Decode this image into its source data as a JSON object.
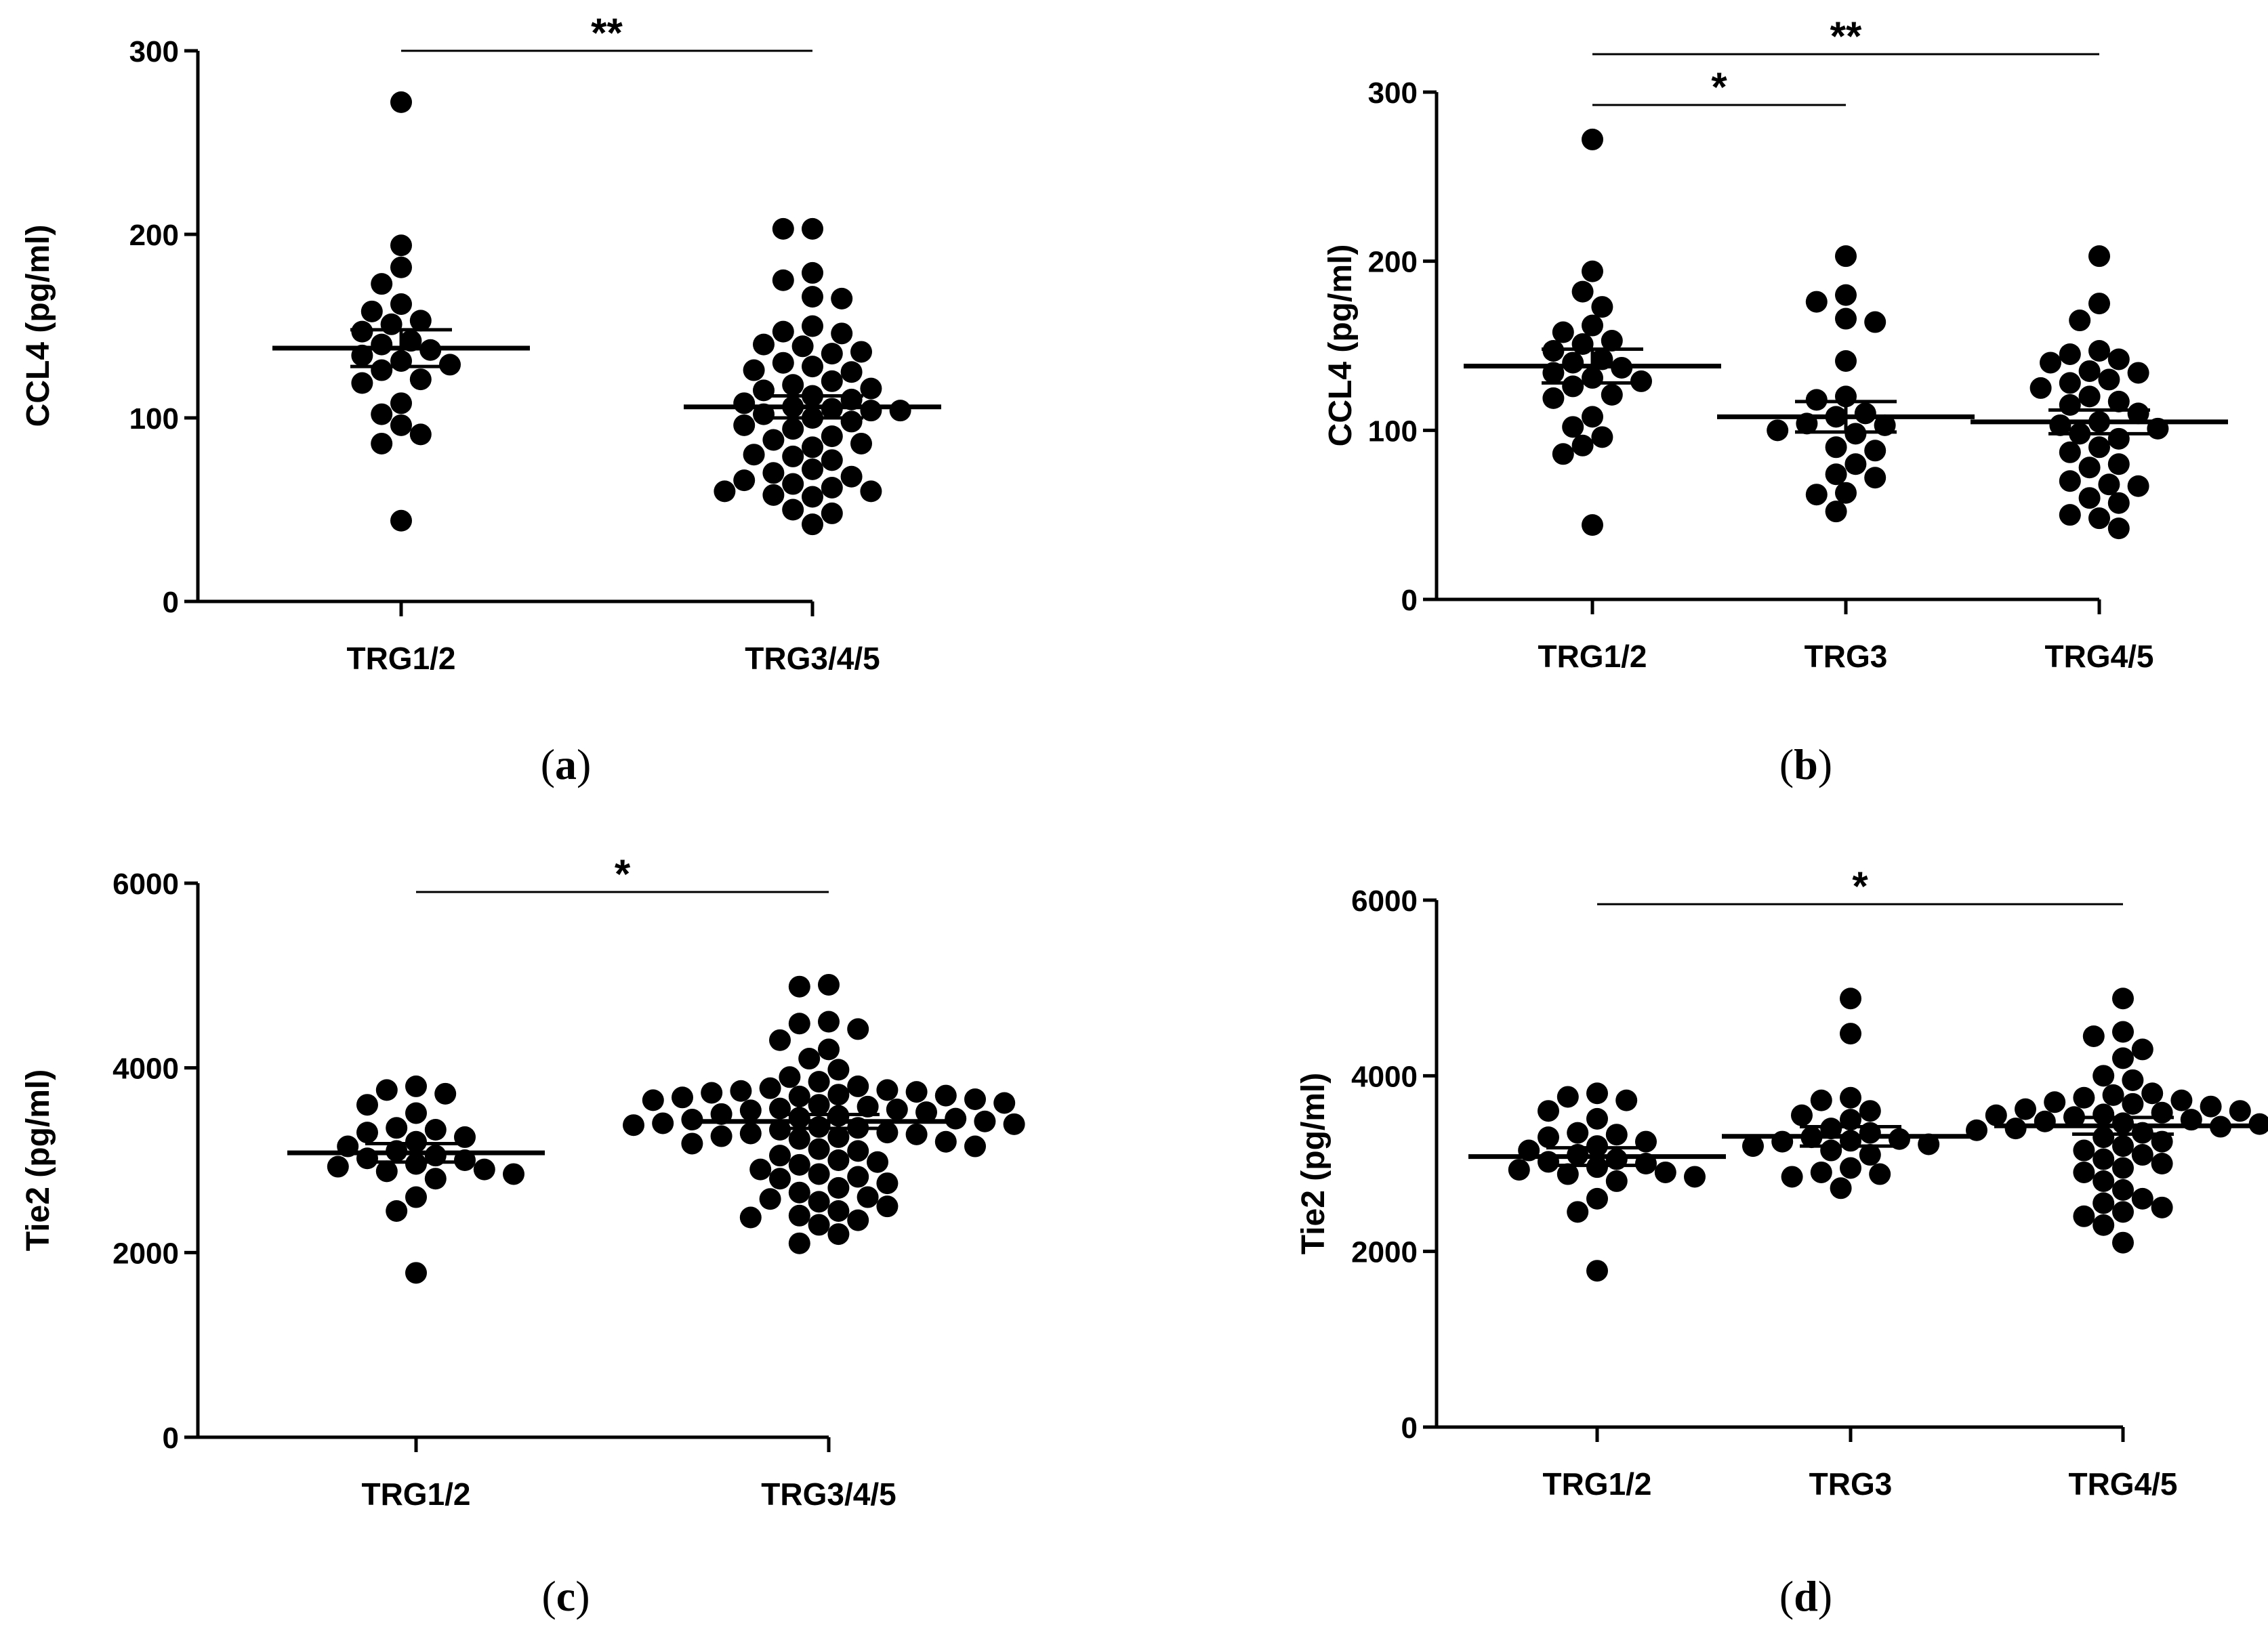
{
  "chart_data": [
    {
      "panel": "(a)",
      "type": "scatter",
      "ylabel": "CCL4 (pg/ml)",
      "ylim": [
        0,
        300
      ],
      "yticks": [
        0,
        100,
        200,
        300
      ],
      "categories": [
        "TRG1/2",
        "TRG3/4/5"
      ],
      "groups": [
        {
          "name": "TRG1/2",
          "mean": 138,
          "sem": 10,
          "values": [
            272,
            194,
            182,
            173,
            162,
            158,
            153,
            151,
            147,
            142,
            140,
            137,
            134,
            131,
            129,
            126,
            121,
            119,
            108,
            102,
            96,
            91,
            86,
            44
          ]
        },
        {
          "name": "TRG3/4/5",
          "mean": 106,
          "sem": 6,
          "values": [
            203,
            203,
            179,
            175,
            166,
            165,
            150,
            147,
            146,
            140,
            139,
            136,
            135,
            130,
            128,
            126,
            125,
            120,
            118,
            116,
            115,
            112,
            110,
            108,
            106,
            105,
            104,
            104,
            102,
            100,
            98,
            96,
            94,
            90,
            88,
            86,
            84,
            80,
            79,
            77,
            72,
            70,
            68,
            66,
            64,
            62,
            60,
            60,
            58,
            57,
            50,
            48,
            42
          ]
        }
      ],
      "significance": [
        {
          "from": "TRG1/2",
          "to": "TRG3/4/5",
          "label": "**"
        }
      ]
    },
    {
      "panel": "(b)",
      "type": "scatter",
      "ylabel": "CCL4 (pg/ml)",
      "ylim": [
        0,
        300
      ],
      "yticks": [
        0,
        100,
        200,
        300
      ],
      "categories": [
        "TRG1/2",
        "TRG3",
        "TRG4/5"
      ],
      "groups": [
        {
          "name": "TRG1/2",
          "mean": 138,
          "sem": 10,
          "values": [
            272,
            194,
            182,
            173,
            162,
            158,
            153,
            151,
            147,
            142,
            140,
            137,
            134,
            131,
            129,
            126,
            121,
            119,
            108,
            102,
            96,
            91,
            86,
            44
          ]
        },
        {
          "name": "TRG3",
          "mean": 108,
          "sem": 9,
          "values": [
            203,
            180,
            176,
            166,
            164,
            141,
            120,
            118,
            110,
            108,
            104,
            103,
            100,
            98,
            90,
            88,
            80,
            74,
            72,
            63,
            62,
            52
          ]
        },
        {
          "name": "TRG4/5",
          "mean": 105,
          "sem": 7,
          "values": [
            203,
            175,
            165,
            147,
            145,
            142,
            140,
            135,
            134,
            130,
            128,
            125,
            120,
            117,
            115,
            110,
            105,
            103,
            101,
            98,
            95,
            90,
            87,
            80,
            78,
            70,
            68,
            67,
            60,
            57,
            50,
            48,
            42
          ]
        }
      ],
      "significance": [
        {
          "from": "TRG1/2",
          "to": "TRG3",
          "label": "*"
        },
        {
          "from": "TRG1/2",
          "to": "TRG4/5",
          "label": "**"
        }
      ]
    },
    {
      "panel": "(c)",
      "type": "scatter",
      "ylabel": "Tie2 (pg/ml)",
      "ylim": [
        0,
        6000
      ],
      "yticks": [
        0,
        2000,
        4000,
        6000
      ],
      "categories": [
        "TRG1/2",
        "TRG3/4/5"
      ],
      "groups": [
        {
          "name": "TRG1/2",
          "mean": 3080,
          "sem": 100,
          "values": [
            3800,
            3760,
            3720,
            3600,
            3510,
            3350,
            3330,
            3300,
            3250,
            3200,
            3150,
            3100,
            3050,
            3020,
            3000,
            2960,
            2930,
            2900,
            2880,
            2850,
            2800,
            2600,
            2450,
            1780
          ]
        },
        {
          "name": "TRG3/4/5",
          "mean": 3420,
          "sem": 75,
          "values": [
            4900,
            4880,
            4500,
            4480,
            4420,
            4300,
            4200,
            4100,
            3980,
            3900,
            3850,
            3800,
            3780,
            3760,
            3750,
            3740,
            3730,
            3710,
            3700,
            3690,
            3680,
            3660,
            3650,
            3620,
            3600,
            3580,
            3560,
            3550,
            3540,
            3520,
            3500,
            3480,
            3460,
            3450,
            3440,
            3420,
            3400,
            3390,
            3380,
            3360,
            3350,
            3330,
            3300,
            3290,
            3280,
            3260,
            3250,
            3230,
            3200,
            3180,
            3150,
            3120,
            3100,
            3050,
            3000,
            2980,
            2950,
            2900,
            2850,
            2820,
            2800,
            2750,
            2700,
            2650,
            2600,
            2580,
            2550,
            2500,
            2450,
            2400,
            2380,
            2350,
            2300,
            2200,
            2100
          ]
        }
      ],
      "significance": [
        {
          "from": "TRG1/2",
          "to": "TRG3/4/5",
          "label": "*"
        }
      ]
    },
    {
      "panel": "(d)",
      "type": "scatter",
      "ylabel": "Tie2 (pg/ml)",
      "ylim": [
        0,
        6000
      ],
      "yticks": [
        0,
        2000,
        4000,
        6000
      ],
      "categories": [
        "TRG1/2",
        "TRG3",
        "TRG4/5"
      ],
      "groups": [
        {
          "name": "TRG1/2",
          "mean": 3080,
          "sem": 100,
          "values": [
            3800,
            3760,
            3720,
            3600,
            3510,
            3350,
            3330,
            3300,
            3250,
            3200,
            3150,
            3100,
            3050,
            3020,
            3000,
            2960,
            2930,
            2900,
            2880,
            2850,
            2800,
            2600,
            2450,
            1780
          ]
        },
        {
          "name": "TRG3",
          "mean": 3310,
          "sem": 110,
          "values": [
            4880,
            4480,
            3750,
            3720,
            3600,
            3550,
            3500,
            3400,
            3350,
            3300,
            3280,
            3260,
            3250,
            3220,
            3200,
            3150,
            3100,
            2950,
            2900,
            2880,
            2850,
            2720
          ]
        },
        {
          "name": "TRG4/5",
          "mean": 3430,
          "sem": 95,
          "values": [
            4880,
            4500,
            4450,
            4300,
            4200,
            4000,
            3950,
            3800,
            3780,
            3750,
            3720,
            3700,
            3680,
            3650,
            3620,
            3600,
            3580,
            3560,
            3550,
            3530,
            3500,
            3480,
            3460,
            3450,
            3420,
            3400,
            3380,
            3350,
            3300,
            3250,
            3200,
            3150,
            3100,
            3050,
            3000,
            2950,
            2900,
            2800,
            2700,
            2600,
            2550,
            2500,
            2450,
            2400,
            2300,
            2100
          ]
        }
      ],
      "significance": [
        {
          "from": "TRG1/2",
          "to": "TRG4/5",
          "label": "*"
        }
      ]
    }
  ]
}
